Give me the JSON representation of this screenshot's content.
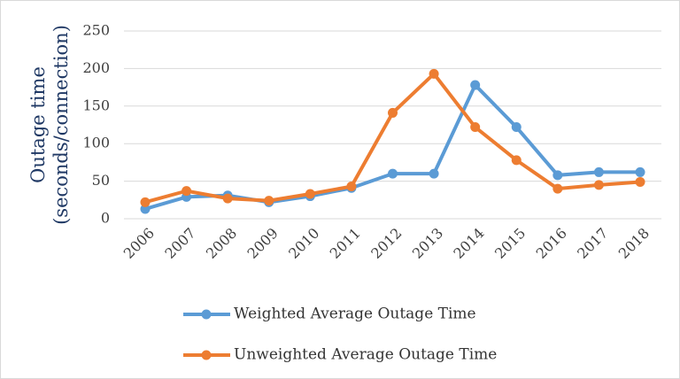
{
  "chart_data": {
    "type": "line",
    "ylabel": [
      "Outage time",
      "(seconds/connection)"
    ],
    "categories": [
      "2006",
      "2007",
      "2008",
      "2009",
      "2010",
      "2011",
      "2012",
      "2013",
      "2014",
      "2015",
      "2016",
      "2017",
      "2018"
    ],
    "series": [
      {
        "name": "Weighted Average Outage Time",
        "color": "#5b9bd5",
        "values": [
          13,
          29,
          31,
          22,
          30,
          41,
          60,
          60,
          178,
          122,
          58,
          62,
          62
        ]
      },
      {
        "name": "Unweighted Average Outage Time",
        "color": "#ed7d31",
        "values": [
          22,
          37,
          27,
          24,
          33,
          43,
          141,
          193,
          122,
          78,
          40,
          45,
          49
        ]
      }
    ],
    "ylim": [
      0,
      250
    ],
    "yticks": [
      0,
      50,
      100,
      150,
      200,
      250
    ],
    "grid": true,
    "legend": "bottom"
  }
}
